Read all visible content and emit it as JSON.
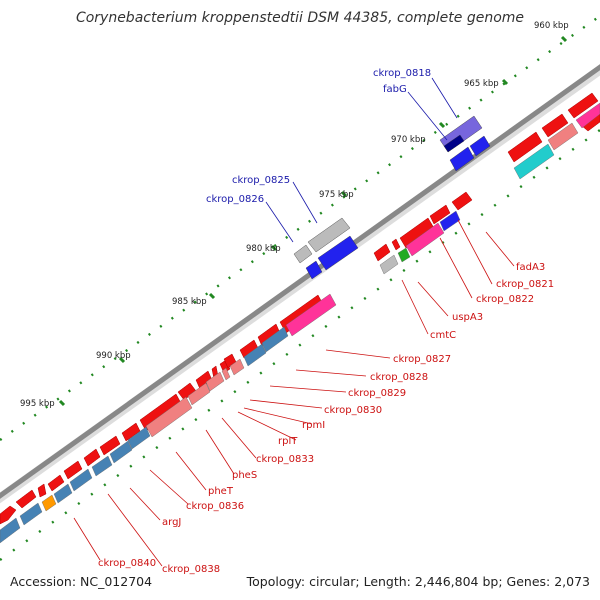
{
  "title": "Corynebacterium kroppenstedtii DSM 44385, complete genome",
  "footer": {
    "accession": "Accession: NC_012704",
    "topology": "Topology: circular; Length: 2,446,804 bp; Genes: 2,073"
  },
  "colors": {
    "cds_forward": "#ee1111",
    "cds_reverse": "#2222ee",
    "backbone": "#888888",
    "tick": "#228822",
    "label_blue": "#1a1aaa",
    "label_red": "#cc1111",
    "cog_pink": "#ff3399",
    "cog_salmon": "#f08080",
    "cog_steelblue": "#4682b4",
    "cog_cyan": "#22cccc",
    "cog_green": "#22aa22",
    "cog_orange": "#ff9900",
    "cog_grey": "#bbbbbb",
    "cog_purple": "#7766dd",
    "cog_navy": "#000088"
  },
  "kbp_ticks": [
    "960 kbp",
    "965 kbp",
    "970 kbp",
    "975 kbp",
    "980 kbp",
    "985 kbp",
    "990 kbp",
    "995 kbp"
  ],
  "labels_top": [
    "ckrop_0818",
    "fabG",
    "ckrop_0825",
    "ckrop_0826"
  ],
  "labels_bottom": [
    "fadA3",
    "ckrop_0821",
    "ckrop_0822",
    "uspA3",
    "cmtC",
    "ckrop_0827",
    "ckrop_0828",
    "ckrop_0829",
    "ckrop_0830",
    "rpmI",
    "rplT",
    "ckrop_0833",
    "pheS",
    "pheT",
    "ckrop_0836",
    "argJ",
    "ckrop_0838",
    "ckrop_0840"
  ]
}
